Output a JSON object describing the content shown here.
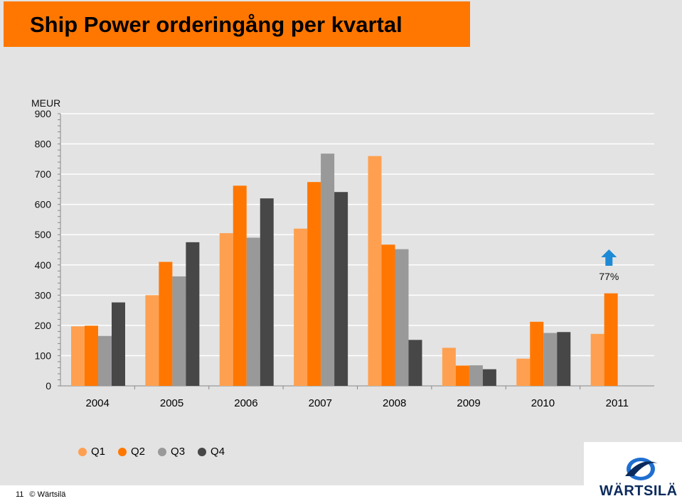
{
  "slide": {
    "title": "Ship Power orderingång per kvartal",
    "footer_page": "11",
    "footer_copy": "© Wärtsilä",
    "logo_text": "WÄRTSILÄ"
  },
  "chart_data": {
    "type": "bar",
    "title": "Ship Power orderingång per kvartal",
    "ylabel": "MEUR",
    "xlabel": "",
    "ylim": [
      0,
      900
    ],
    "yticks": [
      0,
      100,
      200,
      300,
      400,
      500,
      600,
      700,
      800,
      900
    ],
    "grid": true,
    "legend": "bottom-left",
    "categories": [
      "2004",
      "2005",
      "2006",
      "2007",
      "2008",
      "2009",
      "2010",
      "2011"
    ],
    "series": [
      {
        "name": "Q1",
        "color": "#ffa050",
        "values": [
          197,
          300,
          505,
          520,
          760,
          126,
          90,
          172
        ]
      },
      {
        "name": "Q2",
        "color": "#ff7700",
        "values": [
          199,
          410,
          662,
          674,
          467,
          67,
          212,
          306
        ]
      },
      {
        "name": "Q3",
        "color": "#999999",
        "values": [
          165,
          362,
          490,
          768,
          452,
          68,
          175,
          null
        ]
      },
      {
        "name": "Q4",
        "color": "#474747",
        "values": [
          276,
          475,
          620,
          641,
          152,
          55,
          178,
          null
        ]
      }
    ],
    "annotation": {
      "label": "77%",
      "icon": "up-arrow-icon",
      "color": "#1e8ad6",
      "category": "2011"
    }
  }
}
